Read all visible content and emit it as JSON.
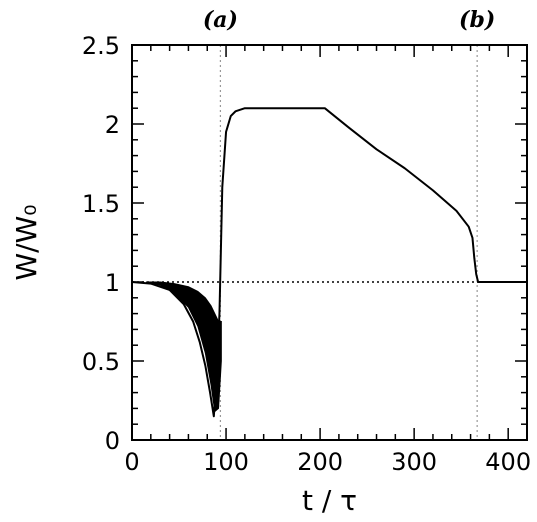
{
  "chart_data": {
    "type": "line",
    "title": "",
    "xlabel": "t / τ",
    "ylabel": "W/W₀",
    "xlim": [
      0,
      420
    ],
    "ylim": [
      0,
      2.5
    ],
    "grid": false,
    "legend": "none",
    "x_ticks": [
      0,
      100,
      200,
      300,
      400
    ],
    "x_tick_labels": [
      "0",
      "100",
      "200",
      "300",
      "400"
    ],
    "y_ticks": [
      0,
      0.5,
      1,
      1.5,
      2,
      2.5
    ],
    "y_tick_labels": [
      "0",
      "0.5",
      "1",
      "1.5",
      "2",
      "2.5"
    ],
    "reference_line": {
      "y": 1,
      "style": "dotted"
    },
    "vertical_markers": [
      {
        "x": 94,
        "label": "(a)",
        "style": "dotted"
      },
      {
        "x": 367,
        "label": "(b)",
        "style": "dotted"
      }
    ],
    "series": [
      {
        "x": [
          0,
          20,
          40,
          55,
          65,
          72,
          78,
          83,
          87,
          90,
          93,
          96,
          100,
          105,
          110,
          120,
          140,
          160,
          180,
          205,
          230,
          260,
          290,
          320,
          345,
          358,
          362,
          364,
          366,
          368,
          372,
          380,
          390,
          400,
          420
        ],
        "y": [
          1.0,
          0.99,
          0.95,
          0.86,
          0.75,
          0.62,
          0.47,
          0.3,
          0.15,
          0.4,
          0.8,
          1.6,
          1.95,
          2.05,
          2.08,
          2.1,
          2.1,
          2.1,
          2.1,
          2.1,
          1.98,
          1.84,
          1.72,
          1.58,
          1.45,
          1.35,
          1.28,
          1.15,
          1.05,
          1.0,
          1.0,
          1.0,
          1.0,
          1.0,
          1.0
        ]
      }
    ],
    "oscillation_band": {
      "x": [
        15,
        30,
        45,
        60,
        70,
        78,
        84,
        88,
        92,
        95
      ],
      "upper": [
        1.0,
        1.0,
        0.99,
        0.97,
        0.94,
        0.9,
        0.85,
        0.8,
        0.75,
        0.75
      ],
      "lower": [
        1.0,
        0.98,
        0.93,
        0.84,
        0.72,
        0.55,
        0.35,
        0.18,
        0.2,
        0.5
      ]
    }
  }
}
